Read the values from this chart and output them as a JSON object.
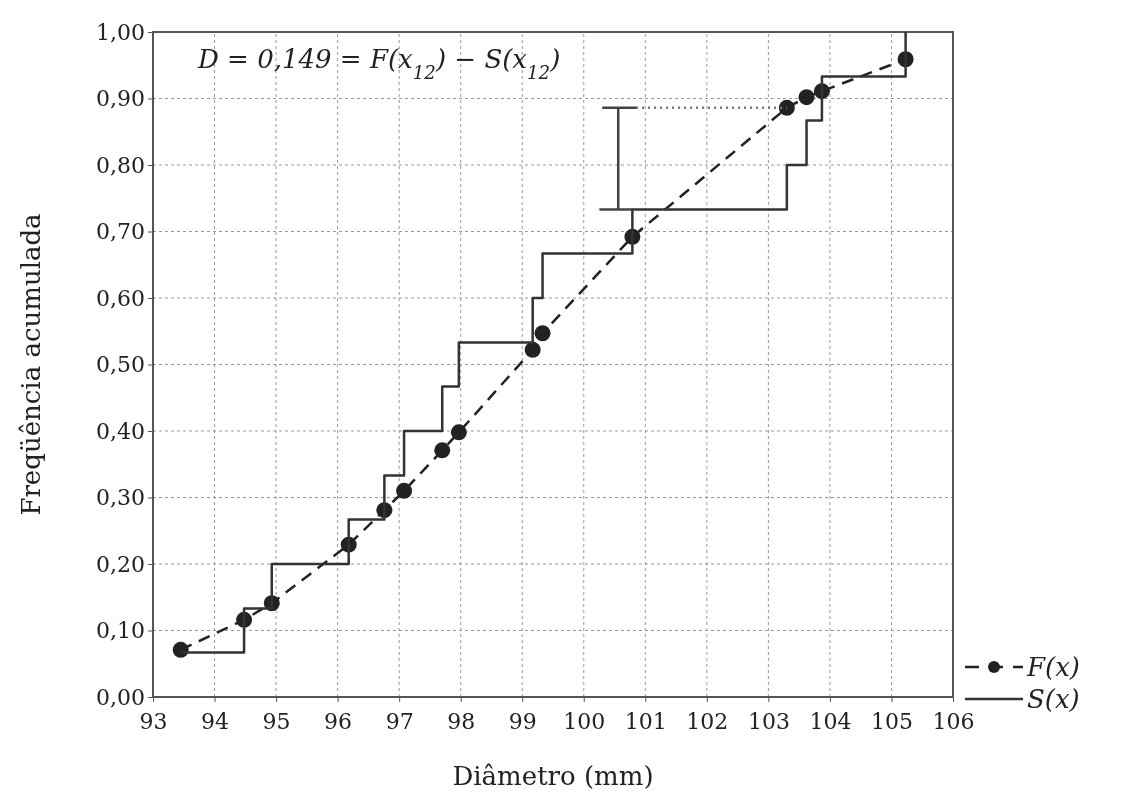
{
  "chart_data": {
    "type": "line",
    "xlabel": "Diâmetro (mm)",
    "ylabel": "Freqüência acumulada",
    "annotations": [
      "D = 0,149 = F(x$_{12}$) − S(x$_{12}$)"
    ],
    "xlim": [
      93,
      106
    ],
    "xticks": [
      93,
      94,
      95,
      96,
      97,
      98,
      99,
      100,
      101,
      102,
      103,
      104,
      105,
      106
    ],
    "ylim": [
      0,
      1
    ],
    "yticks": [
      {
        "value": 0,
        "label": "0,00"
      },
      {
        "value": 0.1,
        "label": "0,10"
      },
      {
        "value": 0.2,
        "label": "0,20"
      },
      {
        "value": 0.3,
        "label": "0,30"
      },
      {
        "value": 0.4,
        "label": "0,40"
      },
      {
        "value": 0.5,
        "label": "0,50"
      },
      {
        "value": 0.6,
        "label": "0,60"
      },
      {
        "value": 0.7,
        "label": "0,70"
      },
      {
        "value": 0.8,
        "label": "0,80"
      },
      {
        "value": 0.9,
        "label": "0,90"
      },
      {
        "value": 1,
        "label": "1,00"
      }
    ],
    "grid": true,
    "legend": "bottom right",
    "series": [
      {
        "name": "F(x)",
        "color": "#222222",
        "line_style": "dashed",
        "marker": "circle",
        "x": [
          93.45,
          94.48,
          94.93,
          96.18,
          96.76,
          97.08,
          97.7,
          97.97,
          99.17,
          99.33,
          100.79,
          103.3,
          103.62,
          103.87,
          105.23
        ],
        "values": [
          0.071,
          0.116,
          0.141,
          0.229,
          0.281,
          0.31,
          0.371,
          0.398,
          0.522,
          0.547,
          0.692,
          0.886,
          0.902,
          0.911,
          0.959
        ]
      },
      {
        "name": "S(x)",
        "type": "step",
        "color": "#333333",
        "line_style": "solid",
        "marker": "none",
        "x": [
          93.45,
          94.48,
          94.93,
          96.18,
          96.76,
          97.08,
          97.7,
          97.97,
          99.17,
          99.33,
          100.79,
          103.3,
          103.62,
          103.87,
          105.23
        ],
        "values": [
          0.067,
          0.133,
          0.2,
          0.267,
          0.333,
          0.4,
          0.467,
          0.533,
          0.6,
          0.667,
          0.733,
          0.8,
          0.867,
          0.933,
          1.0
        ]
      },
      {
        "color": "#444444",
        "line_style": "solid",
        "marker": "none",
        "x": [
          100.3,
          100.85,
          100.56,
          100.56,
          100.27,
          100.79
        ],
        "values": [
          0.886,
          0.886,
          0.886,
          0.733,
          0.733,
          0.733
        ]
      },
      {
        "color": "#777777",
        "line_style": "dotted",
        "marker": "none",
        "x": [
          100.85,
          103.3
        ],
        "values": [
          0.886,
          0.886
        ]
      }
    ]
  }
}
